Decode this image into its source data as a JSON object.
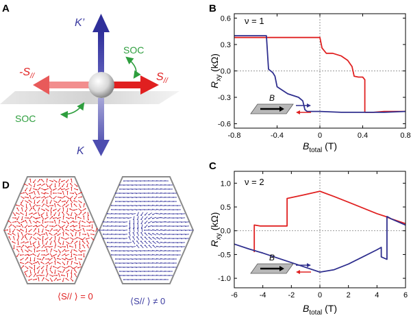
{
  "panels": {
    "A": {
      "letter": "A",
      "k_prime_label": "K’",
      "k_label": "K",
      "s_plus_label": "S",
      "s_minus_label": "-S",
      "s_subscript": "//",
      "soc_label": "SOC",
      "colors": {
        "blue": "#3b3ba0",
        "red": "#e02020",
        "green": "#2e9e3e"
      }
    },
    "B": {
      "letter": "B",
      "nu_label": "ν = 1",
      "inset_label": "B"
    },
    "C": {
      "letter": "C",
      "nu_label": "ν = 2",
      "inset_label": "B"
    },
    "D": {
      "letter": "D",
      "left_label": "⟨S// ⟩ = 0",
      "right_label": "⟨S// ⟩ ≠ 0"
    }
  },
  "chart_data": [
    {
      "panel": "B",
      "type": "line",
      "xlabel_main": "B",
      "xlabel_sub": "total",
      "xlabel_unit": " (T)",
      "ylabel_main": "R",
      "ylabel_sub": "xy",
      "ylabel_unit": " (kΩ)",
      "xlim": [
        -0.8,
        0.8
      ],
      "ylim": [
        -0.65,
        0.65
      ],
      "xticks": [
        -0.8,
        -0.4,
        0,
        0.4,
        0.8
      ],
      "xtick_labels": [
        "-0.8",
        "-0.4",
        "0",
        "0.4",
        "0.8"
      ],
      "yticks": [
        -0.6,
        -0.3,
        0.0,
        0.3,
        0.6
      ],
      "ytick_labels": [
        "-0.6",
        "-0.3",
        "0.0",
        "0.3",
        "0.6"
      ],
      "series": [
        {
          "color": "#e02020",
          "x": [
            -0.8,
            -0.6,
            -0.4,
            -0.2,
            0.0,
            0.02,
            0.06,
            0.1,
            0.12,
            0.2,
            0.26,
            0.3,
            0.32,
            0.36,
            0.4,
            0.42,
            0.42,
            0.5,
            0.6,
            0.7,
            0.8
          ],
          "y": [
            0.38,
            0.38,
            0.38,
            0.38,
            0.38,
            0.26,
            0.2,
            0.2,
            0.2,
            0.17,
            0.12,
            0.05,
            -0.06,
            -0.07,
            -0.07,
            -0.1,
            -0.47,
            -0.47,
            -0.46,
            -0.46,
            -0.46
          ]
        },
        {
          "color": "#2e2e8e",
          "x": [
            -0.8,
            -0.6,
            -0.5,
            -0.48,
            -0.44,
            -0.42,
            -0.4,
            -0.3,
            -0.2,
            -0.16,
            -0.14,
            -0.12,
            -0.05,
            0.0,
            0.2,
            0.4,
            0.6,
            0.8
          ],
          "y": [
            0.4,
            0.4,
            0.4,
            0.02,
            -0.02,
            -0.06,
            -0.18,
            -0.26,
            -0.3,
            -0.34,
            -0.44,
            -0.46,
            -0.46,
            -0.46,
            -0.47,
            -0.47,
            -0.47,
            -0.46
          ]
        }
      ]
    },
    {
      "panel": "C",
      "type": "line",
      "xlabel_main": "B",
      "xlabel_sub": "total",
      "xlabel_unit": " (T)",
      "ylabel_main": "R",
      "ylabel_sub": "xy",
      "ylabel_unit": " (kΩ)",
      "xlim": [
        -6,
        6
      ],
      "ylim": [
        -1.2,
        1.25
      ],
      "xticks": [
        -6,
        -4,
        -2,
        0,
        2,
        4,
        6
      ],
      "xtick_labels": [
        "-6",
        "-4",
        "-2",
        "0",
        "2",
        "4",
        "6"
      ],
      "yticks": [
        -1.0,
        -0.5,
        0.0,
        0.5,
        1.0
      ],
      "ytick_labels": [
        "-1.0",
        "-0.5",
        "0.0",
        "0.5",
        "1.0"
      ],
      "series": [
        {
          "color": "#e02020",
          "x": [
            -4.6,
            -4.6,
            -4.2,
            -3.0,
            -2.3,
            -2.3,
            -1.2,
            0.0,
            1.0,
            2.0,
            3.0,
            4.0,
            4.6,
            5.0,
            6.0
          ],
          "y": [
            -0.45,
            0.12,
            0.1,
            0.1,
            0.1,
            0.68,
            0.75,
            0.83,
            0.72,
            0.6,
            0.48,
            0.36,
            0.3,
            0.25,
            0.15
          ]
        },
        {
          "color": "#2e2e8e",
          "x": [
            -6.0,
            -5.0,
            -4.0,
            -3.0,
            -2.0,
            -1.0,
            0.0,
            1.0,
            2.0,
            3.0,
            4.0,
            4.3,
            4.3,
            4.7,
            4.7,
            5.0,
            6.0
          ],
          "y": [
            -0.28,
            -0.38,
            -0.47,
            -0.57,
            -0.67,
            -0.77,
            -0.87,
            -0.82,
            -0.7,
            -0.55,
            -0.4,
            -0.35,
            -0.55,
            -0.6,
            0.3,
            0.25,
            0.12
          ]
        }
      ]
    }
  ]
}
